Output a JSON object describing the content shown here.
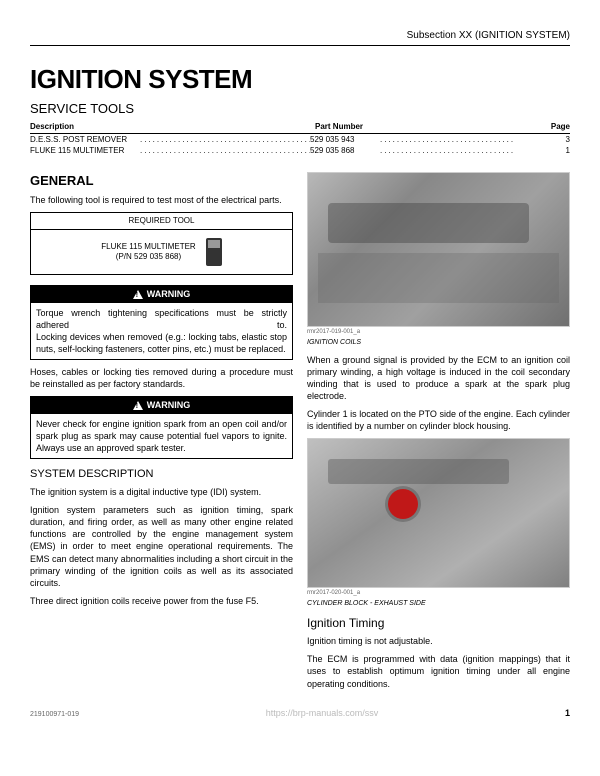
{
  "header": {
    "subsection": "Subsection XX (IGNITION SYSTEM)"
  },
  "title": "IGNITION SYSTEM",
  "serviceTools": {
    "heading": "SERVICE TOOLS",
    "columns": {
      "desc": "Description",
      "part": "Part Number",
      "page": "Page"
    },
    "rows": [
      {
        "name": "D.E.S.S. POST REMOVER",
        "part": "529 035 943",
        "page": "3"
      },
      {
        "name": "FLUKE 115 MULTIMETER",
        "part": "529 035 868",
        "page": "1"
      }
    ]
  },
  "general": {
    "heading": "GENERAL",
    "intro": "The following tool is required to test most of the electrical parts.",
    "requiredTool": {
      "header": "REQUIRED TOOL",
      "name": "FLUKE 115 MULTIMETER",
      "pn": "(P/N 529 035 868)"
    },
    "warning1": {
      "label": "WARNING",
      "line1": "Torque wrench tightening specifications must be strictly adhered to.",
      "line2": "Locking devices when removed (e.g.: locking tabs, elastic stop nuts, self-locking fasteners, cotter pins, etc.) must be replaced."
    },
    "note1": "Hoses, cables or locking ties removed during a procedure must be reinstalled as per factory standards.",
    "warning2": {
      "label": "WARNING",
      "text": "Never check for engine ignition spark from an open coil and/or spark plug as spark may cause potential fuel vapors to ignite. Always use an approved spark tester."
    }
  },
  "systemDesc": {
    "heading": "SYSTEM DESCRIPTION",
    "p1": "The ignition system is a digital inductive type (IDI) system.",
    "p2": "Ignition system parameters such as ignition timing, spark duration, and firing order, as well as many other engine related functions are controlled by the engine management system (EMS) in order to meet engine operational requirements. The EMS can detect many abnormalities including a short circuit in the primary winding of the ignition coils as well as its associated circuits.",
    "p3": "Three direct ignition coils receive power from the fuse F5."
  },
  "rightCol": {
    "img1ref": "rmr2017-019-001_a",
    "img1caption": "IGNITION COILS",
    "p1": "When a ground signal is provided by the ECM to an ignition coil primary winding, a high voltage is induced in the coil secondary winding that is used to produce a spark at the spark plug electrode.",
    "p2": "Cylinder 1 is located on the PTO side of the engine. Each cylinder is identified by a number on cylinder block housing.",
    "img2ref": "rmr2017-020-001_a",
    "img2caption": "CYLINDER BLOCK - EXHAUST SIDE",
    "timing": {
      "heading": "Ignition Timing",
      "p1": "Ignition timing is not adjustable.",
      "p2": "The ECM is programmed with data (ignition mappings) that it uses to establish optimum ignition timing under all engine operating conditions."
    }
  },
  "footer": {
    "docref": "219100971-019",
    "url": "https://brp-manuals.com/ssv",
    "page": "1"
  }
}
